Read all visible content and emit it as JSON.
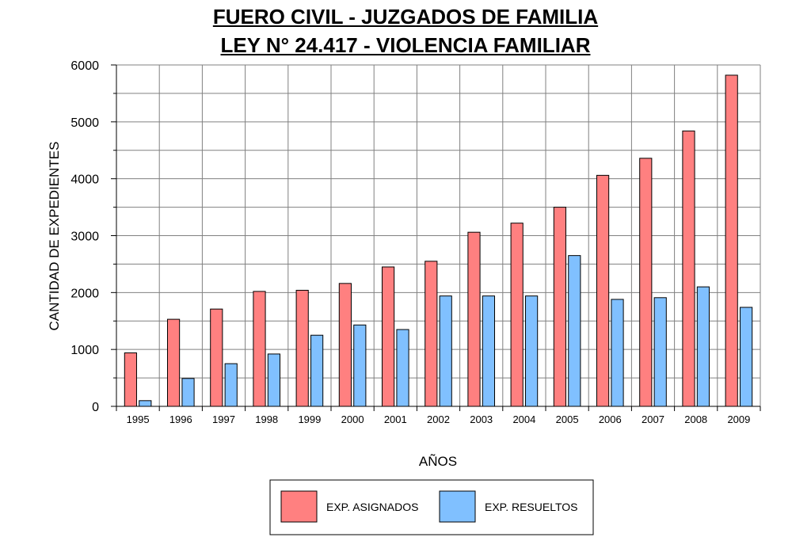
{
  "chart_data": {
    "type": "bar",
    "title": [
      "FUERO CIVIL - JUZGADOS DE FAMILIA",
      "LEY N° 24.417 - VIOLENCIA FAMILIAR"
    ],
    "xlabel": "AÑOS",
    "ylabel": "CANTIDAD DE EXPEDIENTES",
    "ylim": [
      0,
      6000
    ],
    "yticks": [
      0,
      1000,
      2000,
      3000,
      4000,
      5000,
      6000
    ],
    "grid": true,
    "legend_position": "bottom-center",
    "categories": [
      "1995",
      "1996",
      "1997",
      "1998",
      "1999",
      "2000",
      "2001",
      "2002",
      "2003",
      "2004",
      "2005",
      "2006",
      "2007",
      "2008",
      "2009"
    ],
    "series": [
      {
        "name": "EXP. ASIGNADOS",
        "color": "#ff8080",
        "values": [
          940,
          1530,
          1710,
          2020,
          2040,
          2160,
          2450,
          2550,
          3060,
          3220,
          3500,
          4060,
          4360,
          4840,
          5820
        ]
      },
      {
        "name": "EXP. RESUELTOS",
        "color": "#80c0ff",
        "values": [
          100,
          490,
          750,
          920,
          1250,
          1430,
          1350,
          1940,
          1940,
          1940,
          2650,
          1880,
          1910,
          2100,
          1740
        ]
      }
    ]
  }
}
